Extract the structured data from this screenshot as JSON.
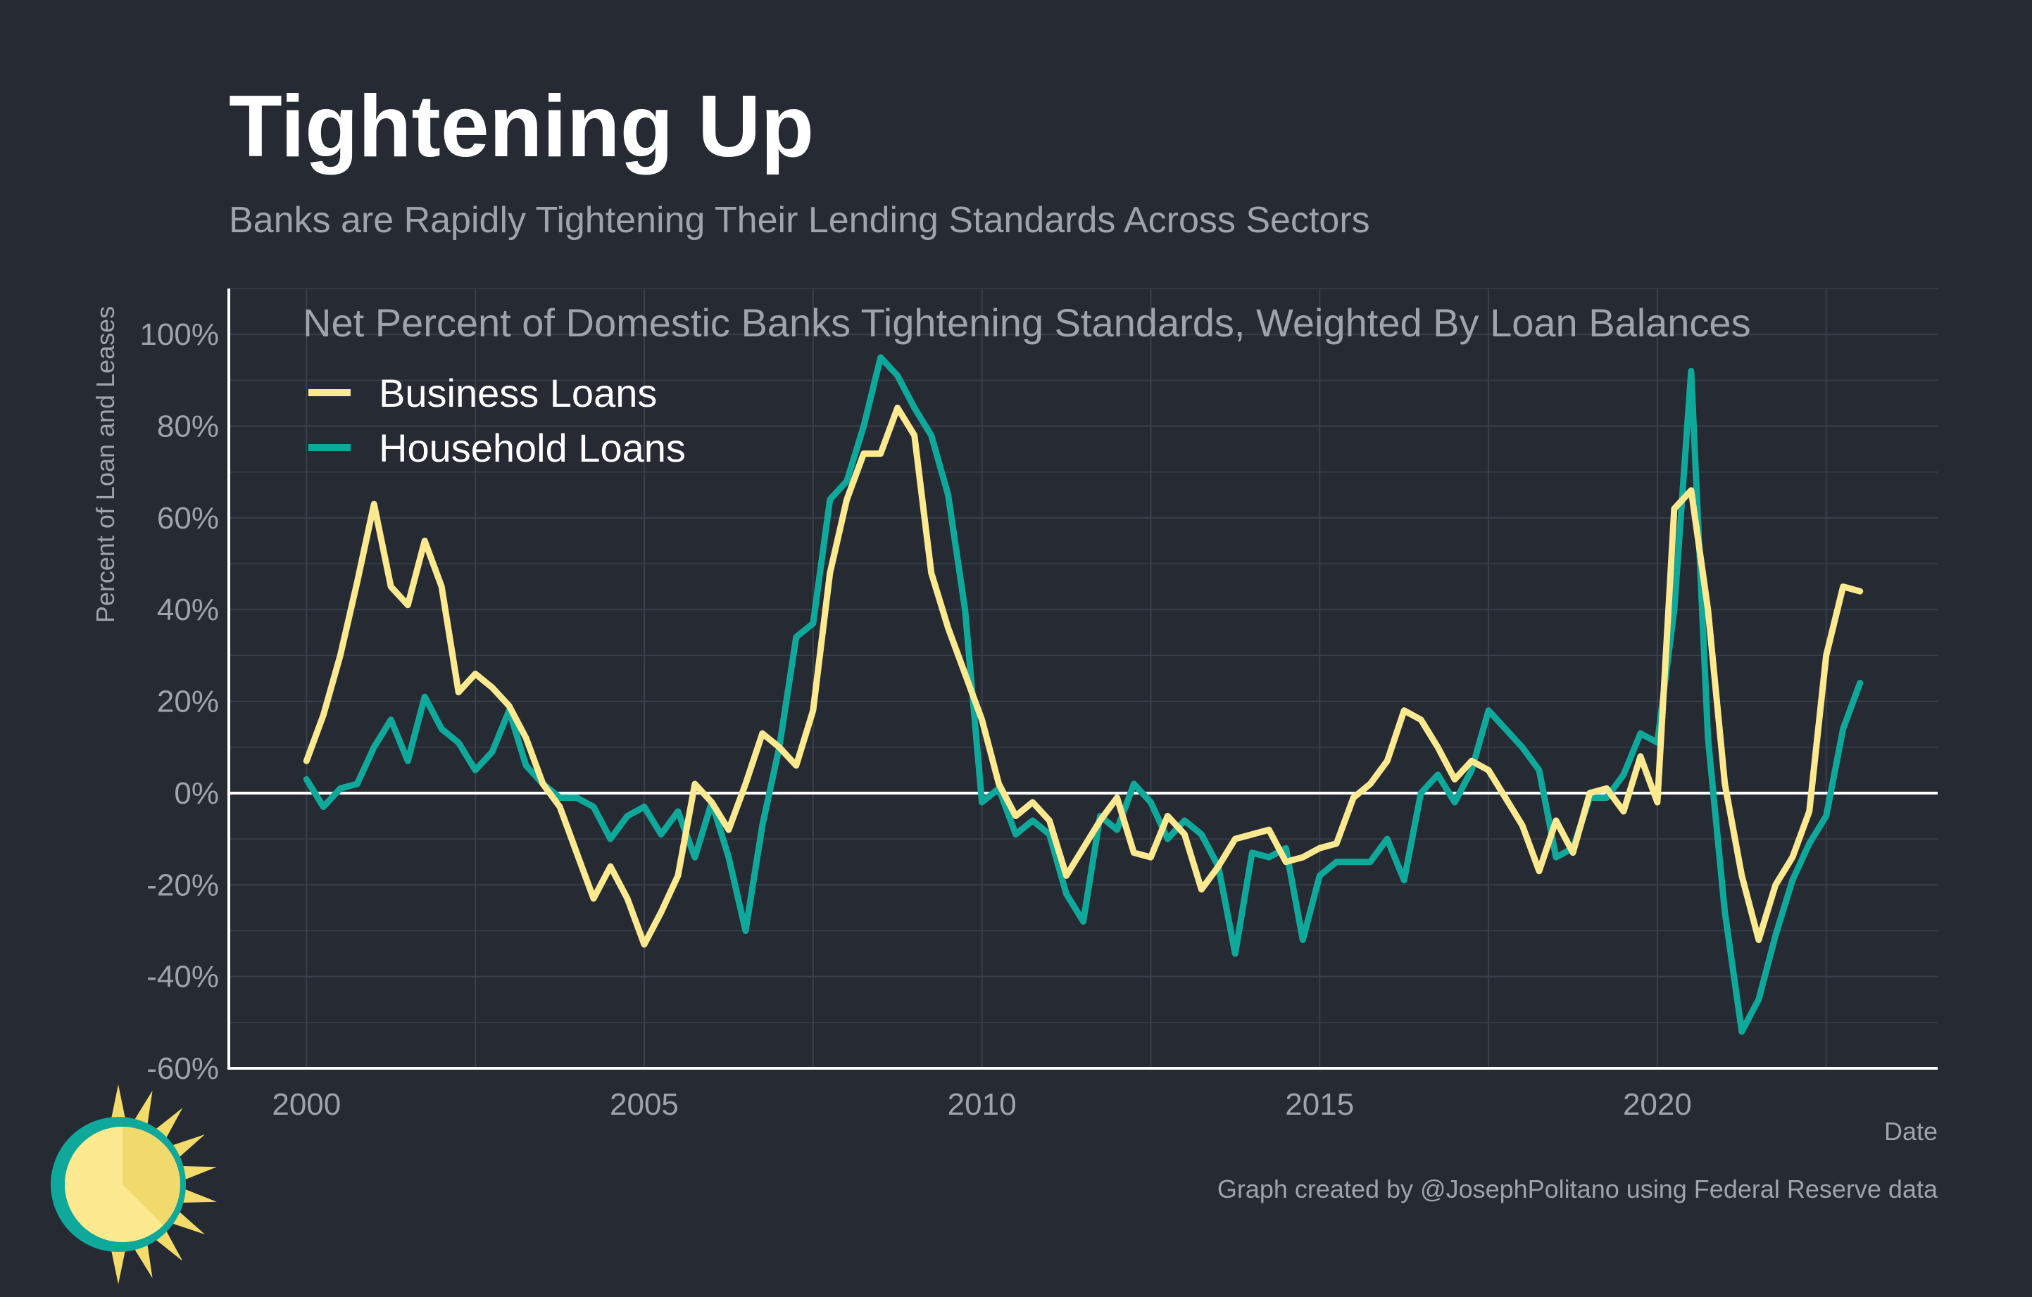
{
  "colors": {
    "background": "#252a33",
    "grid": "#3a404b",
    "axis": "#ffffff",
    "business": "#fde98f",
    "household": "#0fa99b"
  },
  "logo": {
    "name": "sun-logo"
  },
  "chart_data": {
    "type": "line",
    "title": "Tightening Up",
    "subtitle": "Banks are Rapidly Tightening Their Lending Standards Across Sectors",
    "plot_title": "Net Percent of Domestic Banks Tightening Standards, Weighted By Loan Balances",
    "xlabel": "Date",
    "ylabel": "Percent of Loan and Leases",
    "caption": "Graph created by @JosephPolitano using Federal Reserve data",
    "xlim": [
      1998.85,
      2024.15
    ],
    "ylim": [
      -60,
      110
    ],
    "xticks": [
      2000,
      2005,
      2010,
      2015,
      2020
    ],
    "yticks": [
      -60,
      -40,
      -20,
      0,
      20,
      40,
      60,
      80,
      100
    ],
    "ytick_labels": [
      "-60%",
      "-40%",
      "-20%",
      "0%",
      "20%",
      "40%",
      "60%",
      "80%",
      "100%"
    ],
    "grid": true,
    "zero_line": true,
    "legend": "top-left",
    "series": [
      {
        "name": "Business Loans",
        "color": "#fde98f",
        "x": [
          2000.0,
          2000.25,
          2000.5,
          2000.75,
          2001.0,
          2001.25,
          2001.5,
          2001.75,
          2002.0,
          2002.25,
          2002.5,
          2002.75,
          2003.0,
          2003.25,
          2003.5,
          2003.75,
          2004.0,
          2004.25,
          2004.5,
          2004.75,
          2005.0,
          2005.25,
          2005.5,
          2005.75,
          2006.0,
          2006.25,
          2006.5,
          2006.75,
          2007.0,
          2007.25,
          2007.5,
          2007.75,
          2008.0,
          2008.25,
          2008.5,
          2008.75,
          2009.0,
          2009.25,
          2009.5,
          2009.75,
          2010.0,
          2010.25,
          2010.5,
          2010.75,
          2011.0,
          2011.25,
          2011.5,
          2011.75,
          2012.0,
          2012.25,
          2012.5,
          2012.75,
          2013.0,
          2013.25,
          2013.5,
          2013.75,
          2014.0,
          2014.25,
          2014.5,
          2014.75,
          2015.0,
          2015.25,
          2015.5,
          2015.75,
          2016.0,
          2016.25,
          2016.5,
          2016.75,
          2017.0,
          2017.25,
          2017.5,
          2017.75,
          2018.0,
          2018.25,
          2018.5,
          2018.75,
          2019.0,
          2019.25,
          2019.5,
          2019.75,
          2020.0,
          2020.25,
          2020.5,
          2020.75,
          2021.0,
          2021.25,
          2021.5,
          2021.75,
          2022.0,
          2022.25,
          2022.5,
          2022.75,
          2023.0
        ],
        "values": [
          7,
          17,
          30,
          46,
          63,
          45,
          41,
          55,
          45,
          22,
          26,
          23,
          19,
          12,
          2,
          -3,
          -13,
          -23,
          -16,
          -23,
          -33,
          -26,
          -18,
          2,
          -2,
          -8,
          2,
          13,
          10,
          6,
          18,
          48,
          64,
          74,
          74,
          84,
          78,
          48,
          36,
          26,
          16,
          2,
          -5,
          -2,
          -6,
          -18,
          -12,
          -6,
          -1,
          -13,
          -14,
          -5,
          -9,
          -21,
          -16,
          -10,
          -9,
          -8,
          -15,
          -14,
          -12,
          -11,
          -1,
          2,
          7,
          18,
          16,
          10,
          3,
          7,
          5,
          -1,
          -7,
          -17,
          -6,
          -13,
          0,
          1,
          -4,
          8,
          -2,
          62,
          66,
          40,
          2,
          -18,
          -32,
          -20,
          -14,
          -4,
          30,
          45,
          44
        ]
      },
      {
        "name": "Household Loans",
        "color": "#0fa99b",
        "x": [
          2000.0,
          2000.25,
          2000.5,
          2000.75,
          2001.0,
          2001.25,
          2001.5,
          2001.75,
          2002.0,
          2002.25,
          2002.5,
          2002.75,
          2003.0,
          2003.25,
          2003.5,
          2003.75,
          2004.0,
          2004.25,
          2004.5,
          2004.75,
          2005.0,
          2005.25,
          2005.5,
          2005.75,
          2006.0,
          2006.25,
          2006.5,
          2006.75,
          2007.0,
          2007.25,
          2007.5,
          2007.75,
          2008.0,
          2008.25,
          2008.5,
          2008.75,
          2009.0,
          2009.25,
          2009.5,
          2009.75,
          2010.0,
          2010.25,
          2010.5,
          2010.75,
          2011.0,
          2011.25,
          2011.5,
          2011.75,
          2012.0,
          2012.25,
          2012.5,
          2012.75,
          2013.0,
          2013.25,
          2013.5,
          2013.75,
          2014.0,
          2014.25,
          2014.5,
          2014.75,
          2015.0,
          2015.25,
          2015.5,
          2015.75,
          2016.0,
          2016.25,
          2016.5,
          2016.75,
          2017.0,
          2017.25,
          2017.5,
          2017.75,
          2018.0,
          2018.25,
          2018.5,
          2018.75,
          2019.0,
          2019.25,
          2019.5,
          2019.75,
          2020.0,
          2020.25,
          2020.5,
          2020.75,
          2021.0,
          2021.25,
          2021.5,
          2021.75,
          2022.0,
          2022.25,
          2022.5,
          2022.75,
          2023.0
        ],
        "values": [
          3,
          -3,
          1,
          2,
          10,
          16,
          7,
          21,
          14,
          11,
          5,
          9,
          18,
          6,
          2,
          -1,
          -1,
          -3,
          -10,
          -5,
          -3,
          -9,
          -4,
          -14,
          -2,
          -14,
          -30,
          -7,
          10,
          34,
          37,
          64,
          68,
          80,
          95,
          91,
          84,
          78,
          65,
          40,
          -2,
          1,
          -9,
          -6,
          -9,
          -22,
          -28,
          -5,
          -8,
          2,
          -2,
          -10,
          -6,
          -9,
          -16,
          -35,
          -13,
          -14,
          -12,
          -32,
          -18,
          -15,
          -15,
          -15,
          -10,
          -19,
          0,
          4,
          -2,
          5,
          18,
          14,
          10,
          5,
          -14,
          -12,
          -1,
          -1,
          4,
          13,
          11,
          40,
          92,
          12,
          -26,
          -52,
          -45,
          -31,
          -19,
          -11,
          -5,
          14,
          24
        ]
      }
    ]
  }
}
